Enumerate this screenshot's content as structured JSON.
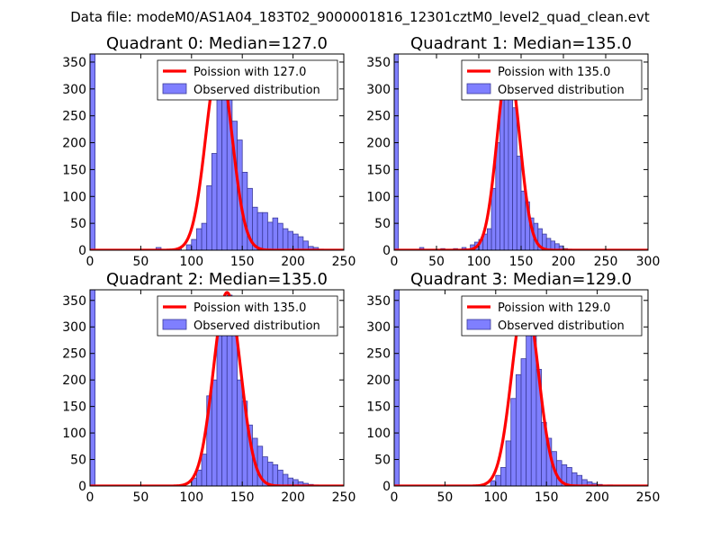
{
  "figure": {
    "suptitle": "Data file: modeM0/AS1A04_183T02_9000001816_12301cztM0_level2_quad_clean.evt",
    "colors": {
      "hist_fill": "#7f7fff",
      "hist_edge": "#3c3c99",
      "poisson": "#ff0000",
      "axes": "#000000"
    }
  },
  "chart_data": [
    {
      "type": "bar",
      "title": "Quadrant 0: Median=127.0",
      "xlim": [
        0,
        250
      ],
      "ylim": [
        0,
        365
      ],
      "xticks": [
        0,
        50,
        100,
        150,
        200,
        250
      ],
      "yticks": [
        0,
        50,
        100,
        150,
        200,
        250,
        300,
        350
      ],
      "legend_position": "top-right",
      "legend": [
        "Poission with 127.0",
        "Observed distribution"
      ],
      "bin_width": 5,
      "bins": [
        [
          0,
          365
        ],
        [
          65,
          5
        ],
        [
          85,
          3
        ],
        [
          95,
          10
        ],
        [
          100,
          20
        ],
        [
          105,
          40
        ],
        [
          110,
          50
        ],
        [
          115,
          120
        ],
        [
          120,
          180
        ],
        [
          125,
          320
        ],
        [
          130,
          350
        ],
        [
          135,
          330
        ],
        [
          140,
          240
        ],
        [
          145,
          205
        ],
        [
          150,
          145
        ],
        [
          155,
          115
        ],
        [
          160,
          80
        ],
        [
          165,
          70
        ],
        [
          170,
          70
        ],
        [
          175,
          52
        ],
        [
          180,
          60
        ],
        [
          185,
          50
        ],
        [
          190,
          40
        ],
        [
          195,
          35
        ],
        [
          200,
          30
        ],
        [
          205,
          25
        ],
        [
          210,
          17
        ],
        [
          215,
          7
        ],
        [
          220,
          5
        ],
        [
          225,
          2
        ],
        [
          230,
          1
        ]
      ],
      "poisson_mean": 127.0,
      "poisson_peak": 350
    },
    {
      "type": "bar",
      "title": "Quadrant 1: Median=135.0",
      "xlim": [
        0,
        300
      ],
      "ylim": [
        0,
        365
      ],
      "xticks": [
        0,
        50,
        100,
        150,
        200,
        250,
        300
      ],
      "yticks": [
        0,
        50,
        100,
        150,
        200,
        250,
        300,
        350
      ],
      "legend_position": "top-right",
      "legend": [
        "Poission with 135.0",
        "Observed distribution"
      ],
      "bin_width": 5,
      "bins": [
        [
          0,
          365
        ],
        [
          30,
          5
        ],
        [
          55,
          3
        ],
        [
          70,
          3
        ],
        [
          80,
          5
        ],
        [
          90,
          10
        ],
        [
          95,
          15
        ],
        [
          100,
          20
        ],
        [
          105,
          30
        ],
        [
          110,
          40
        ],
        [
          115,
          115
        ],
        [
          120,
          200
        ],
        [
          125,
          305
        ],
        [
          130,
          350
        ],
        [
          135,
          340
        ],
        [
          140,
          265
        ],
        [
          145,
          175
        ],
        [
          150,
          110
        ],
        [
          155,
          90
        ],
        [
          160,
          60
        ],
        [
          165,
          50
        ],
        [
          170,
          40
        ],
        [
          175,
          30
        ],
        [
          180,
          22
        ],
        [
          185,
          17
        ],
        [
          190,
          12
        ],
        [
          195,
          8
        ],
        [
          200,
          3
        ],
        [
          205,
          2
        ],
        [
          210,
          1
        ]
      ],
      "poisson_mean": 135.0,
      "poisson_peak": 345
    },
    {
      "type": "bar",
      "title": "Quadrant 2: Median=135.0",
      "xlim": [
        0,
        250
      ],
      "ylim": [
        0,
        370
      ],
      "xticks": [
        0,
        50,
        100,
        150,
        200,
        250
      ],
      "yticks": [
        0,
        50,
        100,
        150,
        200,
        250,
        300,
        350
      ],
      "legend_position": "top-right",
      "legend": [
        "Poission with 135.0",
        "Observed distribution"
      ],
      "bin_width": 5,
      "bins": [
        [
          0,
          370
        ],
        [
          100,
          15
        ],
        [
          105,
          30
        ],
        [
          110,
          60
        ],
        [
          115,
          170
        ],
        [
          120,
          200
        ],
        [
          125,
          285
        ],
        [
          130,
          310
        ],
        [
          135,
          360
        ],
        [
          140,
          300
        ],
        [
          145,
          200
        ],
        [
          150,
          160
        ],
        [
          155,
          115
        ],
        [
          160,
          90
        ],
        [
          165,
          75
        ],
        [
          170,
          55
        ],
        [
          175,
          45
        ],
        [
          180,
          40
        ],
        [
          185,
          30
        ],
        [
          190,
          22
        ],
        [
          195,
          15
        ],
        [
          200,
          12
        ],
        [
          205,
          8
        ],
        [
          210,
          5
        ],
        [
          215,
          3
        ],
        [
          220,
          2
        ]
      ],
      "poisson_mean": 135.0,
      "poisson_peak": 365
    },
    {
      "type": "bar",
      "title": "Quadrant 3: Median=129.0",
      "xlim": [
        0,
        250
      ],
      "ylim": [
        0,
        370
      ],
      "xticks": [
        0,
        50,
        100,
        150,
        200,
        250
      ],
      "yticks": [
        0,
        50,
        100,
        150,
        200,
        250,
        300,
        350
      ],
      "legend_position": "top-right",
      "legend": [
        "Poission with 129.0",
        "Observed distribution"
      ],
      "bin_width": 5,
      "bins": [
        [
          0,
          370
        ],
        [
          95,
          10
        ],
        [
          100,
          20
        ],
        [
          105,
          35
        ],
        [
          110,
          85
        ],
        [
          115,
          165
        ],
        [
          120,
          210
        ],
        [
          125,
          240
        ],
        [
          130,
          355
        ],
        [
          135,
          330
        ],
        [
          140,
          220
        ],
        [
          145,
          120
        ],
        [
          150,
          90
        ],
        [
          155,
          65
        ],
        [
          160,
          48
        ],
        [
          165,
          40
        ],
        [
          170,
          35
        ],
        [
          175,
          25
        ],
        [
          180,
          20
        ],
        [
          185,
          12
        ],
        [
          190,
          8
        ],
        [
          195,
          5
        ],
        [
          200,
          3
        ],
        [
          210,
          2
        ],
        [
          220,
          1
        ]
      ],
      "poisson_mean": 129.0,
      "poisson_peak": 355
    }
  ]
}
